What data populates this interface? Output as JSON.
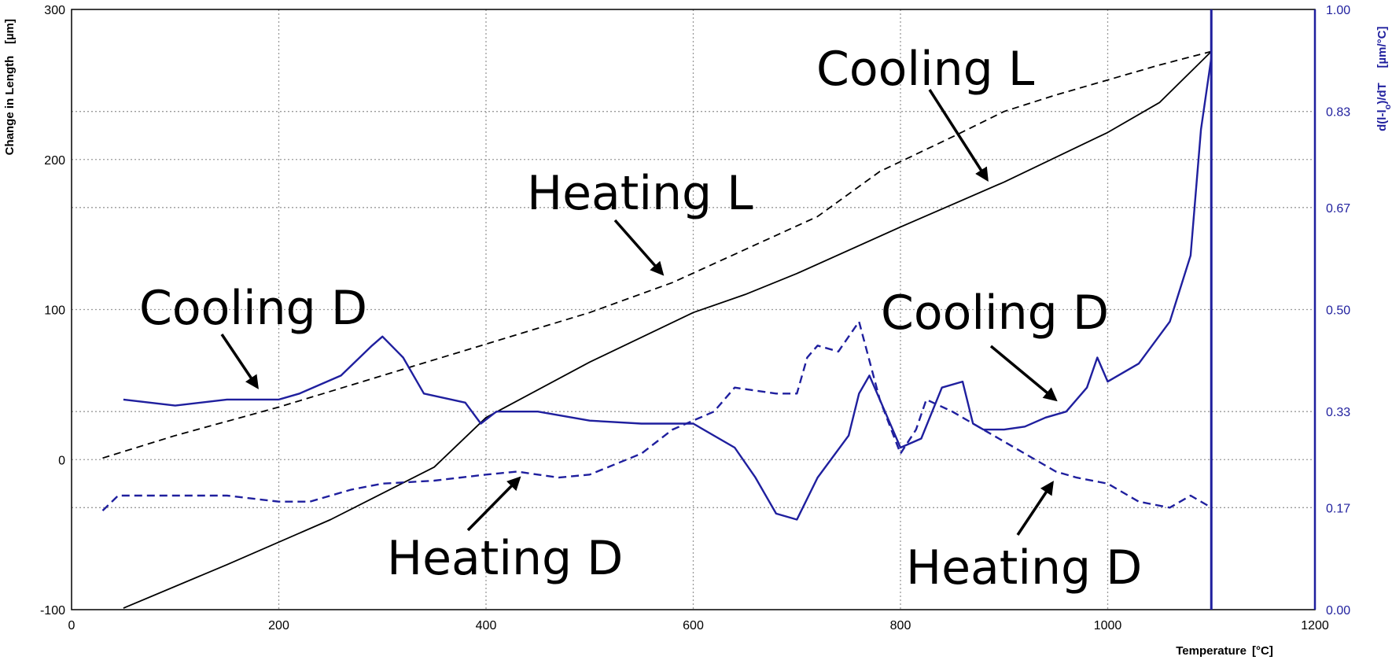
{
  "chart_data": {
    "type": "line",
    "xlabel": "Temperature",
    "xunit": "[°C]",
    "ylabel": "Change in Length",
    "yunit": "[µm]",
    "y2label": "d(l-lo)/dT",
    "y2unit": "[µm/°C]",
    "xlim": [
      0,
      1200
    ],
    "ylim": [
      -100,
      300
    ],
    "y2lim": [
      0,
      1
    ],
    "x_ticks": [
      "0",
      "200",
      "400",
      "600",
      "800",
      "1000",
      "1200"
    ],
    "y_ticks": [
      "-100",
      "0",
      "100",
      "200",
      "300"
    ],
    "y2_ticks": [
      "0.00",
      "0.17",
      "0.33",
      "0.50",
      "0.67",
      "0.83",
      "1.00"
    ],
    "grid": true,
    "series": [
      {
        "name": "Heating L",
        "axis": "left",
        "style": "dashed",
        "color": "#000000",
        "points": [
          [
            30,
            1
          ],
          [
            100,
            16
          ],
          [
            200,
            35
          ],
          [
            300,
            56
          ],
          [
            400,
            77
          ],
          [
            500,
            98
          ],
          [
            580,
            118
          ],
          [
            650,
            140
          ],
          [
            720,
            162
          ],
          [
            780,
            192
          ],
          [
            850,
            215
          ],
          [
            900,
            232
          ],
          [
            950,
            243
          ],
          [
            1000,
            253
          ],
          [
            1050,
            263
          ],
          [
            1100,
            272
          ]
        ]
      },
      {
        "name": "Cooling L",
        "axis": "left",
        "style": "solid",
        "color": "#000000",
        "points": [
          [
            50,
            -99
          ],
          [
            150,
            -70
          ],
          [
            250,
            -40
          ],
          [
            350,
            -5
          ],
          [
            400,
            28
          ],
          [
            500,
            65
          ],
          [
            600,
            98
          ],
          [
            650,
            110
          ],
          [
            700,
            124
          ],
          [
            800,
            155
          ],
          [
            900,
            185
          ],
          [
            1000,
            218
          ],
          [
            1050,
            238
          ],
          [
            1100,
            272
          ]
        ]
      },
      {
        "name": "Heating D",
        "axis": "right",
        "style": "dashed",
        "color": "#1f1f9e",
        "points": [
          [
            30,
            0.165
          ],
          [
            45,
            0.19
          ],
          [
            100,
            0.19
          ],
          [
            150,
            0.19
          ],
          [
            200,
            0.18
          ],
          [
            230,
            0.18
          ],
          [
            270,
            0.2
          ],
          [
            300,
            0.21
          ],
          [
            350,
            0.215
          ],
          [
            400,
            0.225
          ],
          [
            430,
            0.23
          ],
          [
            470,
            0.22
          ],
          [
            500,
            0.225
          ],
          [
            550,
            0.26
          ],
          [
            580,
            0.3
          ],
          [
            620,
            0.33
          ],
          [
            640,
            0.37
          ],
          [
            660,
            0.365
          ],
          [
            680,
            0.36
          ],
          [
            700,
            0.36
          ],
          [
            710,
            0.42
          ],
          [
            720,
            0.44
          ],
          [
            740,
            0.43
          ],
          [
            760,
            0.48
          ],
          [
            780,
            0.35
          ],
          [
            800,
            0.26
          ],
          [
            815,
            0.3
          ],
          [
            825,
            0.35
          ],
          [
            850,
            0.33
          ],
          [
            880,
            0.3
          ],
          [
            900,
            0.28
          ],
          [
            950,
            0.23
          ],
          [
            970,
            0.22
          ],
          [
            1000,
            0.21
          ],
          [
            1030,
            0.18
          ],
          [
            1060,
            0.17
          ],
          [
            1080,
            0.19
          ],
          [
            1100,
            0.17
          ]
        ]
      },
      {
        "name": "Cooling D",
        "axis": "right",
        "style": "solid",
        "color": "#1f1f9e",
        "points": [
          [
            50,
            0.35
          ],
          [
            100,
            0.34
          ],
          [
            150,
            0.35
          ],
          [
            200,
            0.35
          ],
          [
            220,
            0.36
          ],
          [
            260,
            0.39
          ],
          [
            290,
            0.44
          ],
          [
            300,
            0.455
          ],
          [
            320,
            0.42
          ],
          [
            340,
            0.36
          ],
          [
            380,
            0.345
          ],
          [
            395,
            0.31
          ],
          [
            410,
            0.33
          ],
          [
            450,
            0.33
          ],
          [
            500,
            0.315
          ],
          [
            550,
            0.31
          ],
          [
            600,
            0.31
          ],
          [
            640,
            0.27
          ],
          [
            660,
            0.22
          ],
          [
            680,
            0.16
          ],
          [
            700,
            0.15
          ],
          [
            720,
            0.22
          ],
          [
            750,
            0.29
          ],
          [
            760,
            0.36
          ],
          [
            770,
            0.39
          ],
          [
            780,
            0.35
          ],
          [
            800,
            0.27
          ],
          [
            820,
            0.285
          ],
          [
            840,
            0.37
          ],
          [
            860,
            0.38
          ],
          [
            870,
            0.31
          ],
          [
            880,
            0.3
          ],
          [
            900,
            0.3
          ],
          [
            920,
            0.305
          ],
          [
            940,
            0.32
          ],
          [
            960,
            0.33
          ],
          [
            980,
            0.37
          ],
          [
            990,
            0.42
          ],
          [
            1000,
            0.38
          ],
          [
            1030,
            0.41
          ],
          [
            1060,
            0.48
          ],
          [
            1080,
            0.59
          ],
          [
            1090,
            0.8
          ],
          [
            1100,
            0.92
          ]
        ]
      }
    ],
    "vline": {
      "x": 1100,
      "color": "#1f1f9e"
    },
    "annotations": [
      {
        "text": "Cooling L",
        "series": "Cooling L"
      },
      {
        "text": "Heating L",
        "series": "Heating L"
      },
      {
        "text": "Cooling D",
        "series": "Cooling D"
      },
      {
        "text": "Cooling D",
        "series": "Cooling D"
      },
      {
        "text": "Heating D",
        "series": "Heating D"
      },
      {
        "text": "Heating D",
        "series": "Heating D"
      }
    ]
  }
}
